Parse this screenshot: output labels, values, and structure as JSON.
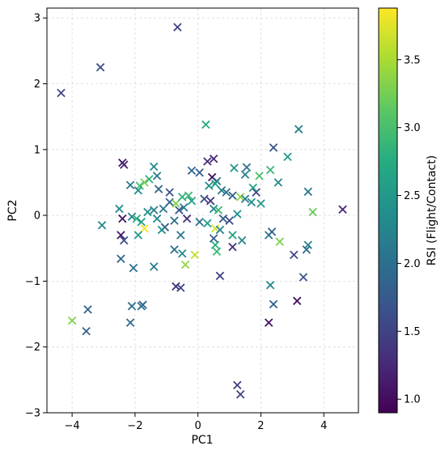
{
  "chart_data": {
    "type": "scatter",
    "marker": "x",
    "xlabel": "PC1",
    "ylabel": "PC2",
    "colorbar_label": "RSI (Flight/Contact)",
    "xlim": [
      -4.8,
      5.1
    ],
    "ylim": [
      -3.0,
      3.15
    ],
    "xticks": [
      -4,
      -2,
      0,
      2,
      4
    ],
    "yticks": [
      -3,
      -2,
      -1,
      0,
      1,
      2,
      3
    ],
    "clim": [
      0.9,
      3.88
    ],
    "cticks": [
      1.0,
      1.5,
      2.0,
      2.5,
      3.0,
      3.5
    ],
    "colormap": "viridis",
    "grid": true,
    "points": [
      {
        "x": -4.35,
        "y": 1.86,
        "c": 1.55
      },
      {
        "x": -3.1,
        "y": 2.25,
        "c": 1.6
      },
      {
        "x": -0.65,
        "y": 2.86,
        "c": 1.5
      },
      {
        "x": 0.25,
        "y": 1.38,
        "c": 2.75
      },
      {
        "x": 3.2,
        "y": 1.31,
        "c": 2.2
      },
      {
        "x": 2.4,
        "y": 1.03,
        "c": 1.7
      },
      {
        "x": 2.85,
        "y": 0.89,
        "c": 2.5
      },
      {
        "x": -2.4,
        "y": 0.8,
        "c": 1.05
      },
      {
        "x": -2.35,
        "y": 0.77,
        "c": 1.2
      },
      {
        "x": -1.4,
        "y": 0.74,
        "c": 2.3
      },
      {
        "x": 1.15,
        "y": 0.72,
        "c": 2.45
      },
      {
        "x": 1.55,
        "y": 0.73,
        "c": 2.0
      },
      {
        "x": 2.3,
        "y": 0.69,
        "c": 2.9
      },
      {
        "x": 0.5,
        "y": 0.86,
        "c": 1.2
      },
      {
        "x": 0.3,
        "y": 0.82,
        "c": 1.3
      },
      {
        "x": -0.2,
        "y": 0.68,
        "c": 1.9
      },
      {
        "x": 0.05,
        "y": 0.65,
        "c": 1.8
      },
      {
        "x": 1.95,
        "y": 0.6,
        "c": 3.0
      },
      {
        "x": 1.5,
        "y": 0.62,
        "c": 2.2
      },
      {
        "x": -1.55,
        "y": 0.55,
        "c": 2.8
      },
      {
        "x": -1.3,
        "y": 0.6,
        "c": 2.1
      },
      {
        "x": -1.7,
        "y": 0.5,
        "c": 3.3
      },
      {
        "x": -1.85,
        "y": 0.45,
        "c": 3.0
      },
      {
        "x": -2.15,
        "y": 0.46,
        "c": 2.1
      },
      {
        "x": -1.25,
        "y": 0.4,
        "c": 1.9
      },
      {
        "x": -0.9,
        "y": 0.35,
        "c": 1.7
      },
      {
        "x": -1.9,
        "y": 0.38,
        "c": 2.4
      },
      {
        "x": 0.45,
        "y": 0.58,
        "c": 1.0
      },
      {
        "x": 0.6,
        "y": 0.52,
        "c": 2.0
      },
      {
        "x": 0.55,
        "y": 0.48,
        "c": 2.6
      },
      {
        "x": 0.35,
        "y": 0.45,
        "c": 2.4
      },
      {
        "x": 0.75,
        "y": 0.38,
        "c": 2.25
      },
      {
        "x": 0.9,
        "y": 0.35,
        "c": 2.0
      },
      {
        "x": 1.1,
        "y": 0.3,
        "c": 1.85
      },
      {
        "x": 1.35,
        "y": 0.28,
        "c": 3.4
      },
      {
        "x": 1.5,
        "y": 0.25,
        "c": 2.2
      },
      {
        "x": 1.7,
        "y": 0.2,
        "c": 2.3
      },
      {
        "x": 1.85,
        "y": 0.35,
        "c": 1.5
      },
      {
        "x": 1.75,
        "y": 0.42,
        "c": 2.6
      },
      {
        "x": 2.0,
        "y": 0.18,
        "c": 2.5
      },
      {
        "x": 2.55,
        "y": 0.5,
        "c": 2.3
      },
      {
        "x": 3.5,
        "y": 0.36,
        "c": 2.1
      },
      {
        "x": 3.65,
        "y": 0.05,
        "c": 3.2
      },
      {
        "x": 4.6,
        "y": 0.09,
        "c": 1.25
      },
      {
        "x": -1.6,
        "y": 0.05,
        "c": 2.4
      },
      {
        "x": -1.4,
        "y": 0.08,
        "c": 2.2
      },
      {
        "x": -1.1,
        "y": 0.1,
        "c": 2.1
      },
      {
        "x": -0.9,
        "y": 0.2,
        "c": 1.85
      },
      {
        "x": -0.7,
        "y": 0.18,
        "c": 3.3
      },
      {
        "x": -0.5,
        "y": 0.28,
        "c": 2.8
      },
      {
        "x": -0.3,
        "y": 0.3,
        "c": 2.9
      },
      {
        "x": -0.2,
        "y": 0.22,
        "c": 2.6
      },
      {
        "x": -0.6,
        "y": 0.08,
        "c": 1.7
      },
      {
        "x": -0.45,
        "y": 0.12,
        "c": 2.1
      },
      {
        "x": 0.2,
        "y": 0.25,
        "c": 1.6
      },
      {
        "x": 0.4,
        "y": 0.22,
        "c": 1.4
      },
      {
        "x": 0.5,
        "y": 0.1,
        "c": 2.3
      },
      {
        "x": 0.65,
        "y": 0.08,
        "c": 2.9
      },
      {
        "x": 0.8,
        "y": -0.05,
        "c": 1.75
      },
      {
        "x": 1.0,
        "y": -0.08,
        "c": 1.6
      },
      {
        "x": 1.25,
        "y": 0.02,
        "c": 2.4
      },
      {
        "x": -2.5,
        "y": 0.1,
        "c": 2.3
      },
      {
        "x": -2.4,
        "y": -0.05,
        "c": 1.1
      },
      {
        "x": -2.1,
        "y": -0.02,
        "c": 2.2
      },
      {
        "x": -1.95,
        "y": -0.05,
        "c": 2.8
      },
      {
        "x": -1.8,
        "y": -0.1,
        "c": 2.55
      },
      {
        "x": -1.3,
        "y": -0.05,
        "c": 2.3
      },
      {
        "x": -1.05,
        "y": -0.18,
        "c": 1.6
      },
      {
        "x": -0.75,
        "y": -0.08,
        "c": 2.0
      },
      {
        "x": -0.35,
        "y": -0.05,
        "c": 1.3
      },
      {
        "x": 0.05,
        "y": -0.1,
        "c": 2.0
      },
      {
        "x": 0.3,
        "y": -0.12,
        "c": 2.5
      },
      {
        "x": 0.55,
        "y": -0.2,
        "c": 3.7
      },
      {
        "x": 0.7,
        "y": -0.22,
        "c": 2.2
      },
      {
        "x": -3.05,
        "y": -0.15,
        "c": 2.3
      },
      {
        "x": -1.7,
        "y": -0.2,
        "c": 3.85
      },
      {
        "x": -2.45,
        "y": -0.3,
        "c": 1.1
      },
      {
        "x": -2.35,
        "y": -0.38,
        "c": 1.6
      },
      {
        "x": -1.9,
        "y": -0.3,
        "c": 2.55
      },
      {
        "x": -1.15,
        "y": -0.22,
        "c": 2.4
      },
      {
        "x": -0.55,
        "y": -0.3,
        "c": 2.1
      },
      {
        "x": 0.5,
        "y": -0.35,
        "c": 1.8
      },
      {
        "x": 1.1,
        "y": -0.3,
        "c": 2.6
      },
      {
        "x": 1.4,
        "y": -0.38,
        "c": 2.3
      },
      {
        "x": 2.25,
        "y": -0.3,
        "c": 2.1
      },
      {
        "x": 2.35,
        "y": -0.25,
        "c": 1.85
      },
      {
        "x": 2.6,
        "y": -0.4,
        "c": 3.3
      },
      {
        "x": -0.1,
        "y": -0.6,
        "c": 3.6
      },
      {
        "x": -0.5,
        "y": -0.58,
        "c": 2.3
      },
      {
        "x": 0.55,
        "y": -0.45,
        "c": 2.8
      },
      {
        "x": 0.6,
        "y": -0.55,
        "c": 2.9
      },
      {
        "x": 1.1,
        "y": -0.48,
        "c": 1.3
      },
      {
        "x": -0.4,
        "y": -0.75,
        "c": 3.4
      },
      {
        "x": -0.75,
        "y": -0.52,
        "c": 2.0
      },
      {
        "x": -2.45,
        "y": -0.66,
        "c": 1.9
      },
      {
        "x": -2.05,
        "y": -0.8,
        "c": 2.0
      },
      {
        "x": -1.4,
        "y": -0.78,
        "c": 2.15
      },
      {
        "x": 3.5,
        "y": -0.45,
        "c": 2.2
      },
      {
        "x": 3.45,
        "y": -0.52,
        "c": 2.0
      },
      {
        "x": 3.05,
        "y": -0.6,
        "c": 1.55
      },
      {
        "x": 3.35,
        "y": -0.94,
        "c": 1.7
      },
      {
        "x": 0.7,
        "y": -0.92,
        "c": 1.45
      },
      {
        "x": 2.3,
        "y": -1.06,
        "c": 2.3
      },
      {
        "x": -0.7,
        "y": -1.08,
        "c": 1.3
      },
      {
        "x": -0.55,
        "y": -1.1,
        "c": 1.55
      },
      {
        "x": 3.15,
        "y": -1.3,
        "c": 1.0
      },
      {
        "x": 2.4,
        "y": -1.35,
        "c": 1.8
      },
      {
        "x": -2.1,
        "y": -1.38,
        "c": 2.0
      },
      {
        "x": -1.75,
        "y": -1.36,
        "c": 1.85
      },
      {
        "x": -1.8,
        "y": -1.38,
        "c": 2.0
      },
      {
        "x": -3.5,
        "y": -1.43,
        "c": 1.85
      },
      {
        "x": -4.0,
        "y": -1.6,
        "c": 3.3
      },
      {
        "x": -2.15,
        "y": -1.63,
        "c": 1.9
      },
      {
        "x": 2.25,
        "y": -1.63,
        "c": 1.05
      },
      {
        "x": -3.55,
        "y": -1.76,
        "c": 1.85
      },
      {
        "x": 1.25,
        "y": -2.58,
        "c": 1.45
      },
      {
        "x": 1.35,
        "y": -2.72,
        "c": 1.5
      }
    ]
  }
}
